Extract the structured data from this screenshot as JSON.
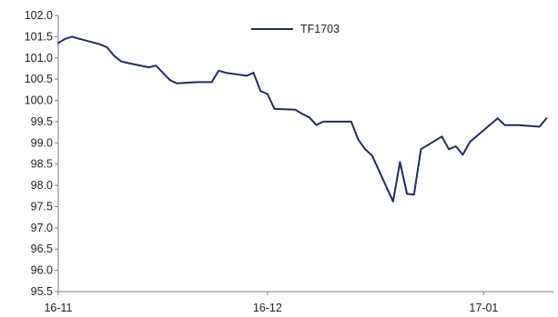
{
  "chart_data": {
    "type": "line",
    "title": "",
    "xlabel": "",
    "ylabel": "",
    "ylim": [
      95.5,
      102.0
    ],
    "y_ticks": [
      95.5,
      96.0,
      96.5,
      97.0,
      97.5,
      98.0,
      98.5,
      99.0,
      99.5,
      100.0,
      100.5,
      101.0,
      101.5,
      102.0
    ],
    "x_tick_labels": [
      "16-11",
      "16-12",
      "17-01"
    ],
    "x_tick_dates": [
      "2016-11-01",
      "2016-12-01",
      "2017-01-01"
    ],
    "xlim": [
      "2016-11-01",
      "2017-01-11"
    ],
    "grid": false,
    "legend_position": "top-center",
    "color": "#1f2d5a",
    "series": [
      {
        "name": "TF1703",
        "x": [
          "2016-11-01",
          "2016-11-02",
          "2016-11-03",
          "2016-11-04",
          "2016-11-07",
          "2016-11-08",
          "2016-11-09",
          "2016-11-10",
          "2016-11-11",
          "2016-11-14",
          "2016-11-15",
          "2016-11-16",
          "2016-11-17",
          "2016-11-18",
          "2016-11-21",
          "2016-11-22",
          "2016-11-23",
          "2016-11-24",
          "2016-11-25",
          "2016-11-28",
          "2016-11-29",
          "2016-11-30",
          "2016-12-01",
          "2016-12-02",
          "2016-12-05",
          "2016-12-06",
          "2016-12-07",
          "2016-12-08",
          "2016-12-09",
          "2016-12-12",
          "2016-12-13",
          "2016-12-14",
          "2016-12-15",
          "2016-12-16",
          "2016-12-19",
          "2016-12-20",
          "2016-12-21",
          "2016-12-22",
          "2016-12-23",
          "2016-12-26",
          "2016-12-27",
          "2016-12-28",
          "2016-12-29",
          "2016-12-30",
          "2017-01-03",
          "2017-01-04",
          "2017-01-05",
          "2017-01-06",
          "2017-01-09",
          "2017-01-10"
        ],
        "values": [
          101.35,
          101.45,
          101.5,
          101.45,
          101.32,
          101.25,
          101.05,
          100.92,
          100.88,
          100.78,
          100.82,
          100.65,
          100.48,
          100.4,
          100.43,
          100.43,
          100.43,
          100.7,
          100.65,
          100.58,
          100.65,
          100.22,
          100.15,
          99.8,
          99.78,
          99.68,
          99.6,
          99.42,
          99.5,
          99.5,
          99.5,
          99.08,
          98.85,
          98.7,
          97.62,
          98.55,
          97.8,
          97.78,
          98.85,
          99.15,
          98.85,
          98.92,
          98.72,
          99.02,
          99.58,
          99.42,
          99.42,
          99.42,
          99.38,
          99.58
        ]
      }
    ]
  }
}
